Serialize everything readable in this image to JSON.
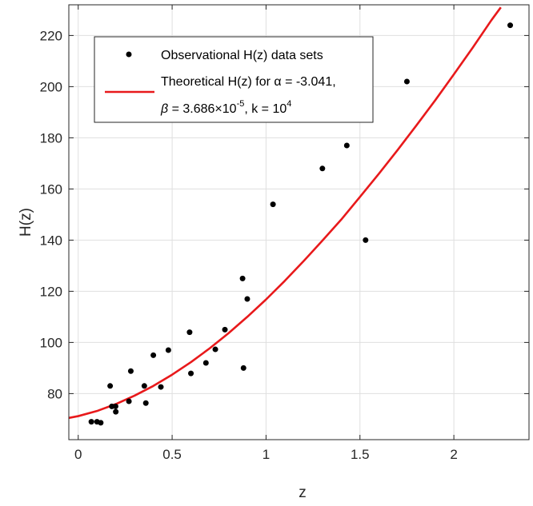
{
  "chart_data": {
    "type": "scatter",
    "xlabel": "z",
    "ylabel": "H(z)",
    "xlim": [
      -0.05,
      2.4
    ],
    "ylim": [
      62,
      232
    ],
    "x_ticks": [
      0,
      0.5,
      1,
      1.5,
      2
    ],
    "x_tick_labels": [
      "0",
      "0.5",
      "1",
      "1.5",
      "2"
    ],
    "y_ticks": [
      80,
      100,
      120,
      140,
      160,
      180,
      200,
      220
    ],
    "y_tick_labels": [
      "80",
      "100",
      "120",
      "140",
      "160",
      "180",
      "200",
      "220"
    ],
    "grid": true,
    "legend_position": "top-left",
    "series": [
      {
        "name": "Observational H(z) data sets",
        "kind": "markers",
        "color": "#000000",
        "x": [
          0.07,
          0.1,
          0.12,
          0.17,
          0.179,
          0.199,
          0.2,
          0.27,
          0.28,
          0.352,
          0.36,
          0.4,
          0.44,
          0.48,
          0.593,
          0.6,
          0.68,
          0.73,
          0.781,
          0.875,
          0.88,
          0.9,
          1.037,
          1.3,
          1.43,
          1.53,
          1.75,
          2.3
        ],
        "y": [
          69,
          69,
          68.6,
          83,
          75,
          75,
          72.9,
          77,
          88.8,
          83,
          76.3,
          95,
          82.6,
          97,
          104,
          87.9,
          92,
          97.3,
          105,
          125,
          90,
          117,
          154,
          168,
          177,
          140,
          202,
          224
        ]
      },
      {
        "name": "Theoretical H(z) for α = -3.041, β = 3.686×10^-5, k = 10^4",
        "kind": "line",
        "color": "#e8191b",
        "x": [
          -0.05,
          0,
          0.1,
          0.2,
          0.3,
          0.4,
          0.5,
          0.6,
          0.7,
          0.8,
          0.9,
          1.0,
          1.1,
          1.2,
          1.3,
          1.4,
          1.5,
          1.6,
          1.7,
          1.8,
          1.9,
          2.0,
          2.1,
          2.2,
          2.25
        ],
        "y": [
          70.5,
          71.2,
          73.2,
          75.9,
          79.2,
          83.0,
          87.4,
          92.3,
          97.7,
          103.6,
          110.0,
          116.8,
          124.1,
          131.8,
          139.8,
          148.0,
          156.9,
          165.9,
          175.2,
          184.8,
          194.6,
          204.8,
          215.2,
          226.0,
          231.0
        ]
      }
    ],
    "legend": {
      "marker_label": "Observational H(z) data sets",
      "line_label_1": "Theoretical H(z) for α = -3.041,",
      "line_label_2_beta": "β",
      "line_label_2_mid": " = 3.686",
      "line_label_2_times": "×",
      "line_label_2_base": "10",
      "line_label_2_exp": "-5",
      "line_label_2_k": ", k = 10",
      "line_label_2_kexp": "4"
    }
  }
}
